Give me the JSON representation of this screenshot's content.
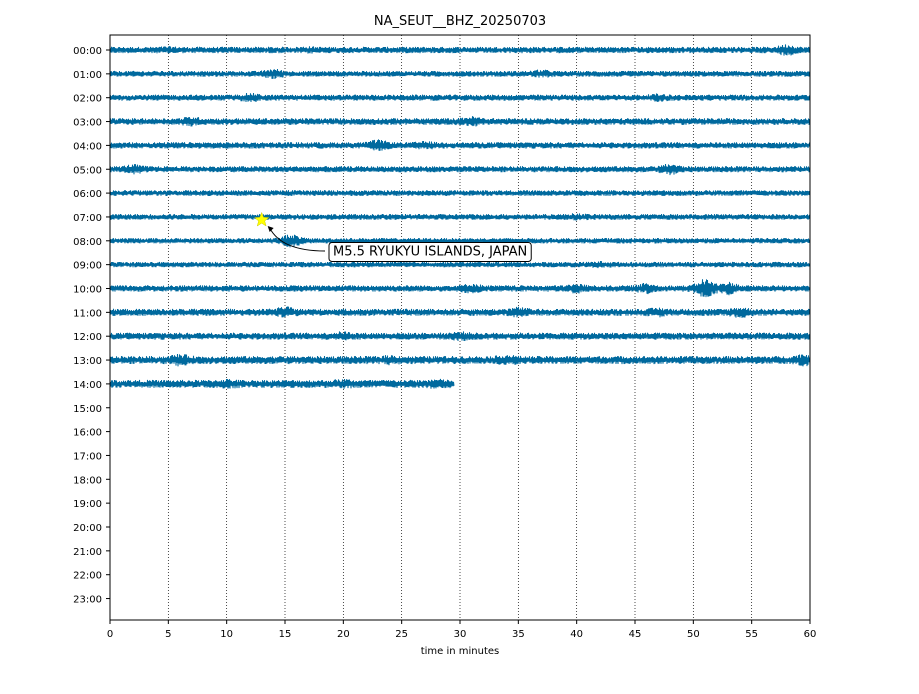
{
  "chart_data": {
    "type": "line",
    "title": "NA_SEUT__BHZ_20250703",
    "xlabel": "time in minutes",
    "ylabel": "",
    "xlim": [
      0,
      60
    ],
    "x_ticks": [
      0,
      5,
      10,
      15,
      20,
      25,
      30,
      35,
      40,
      45,
      50,
      55,
      60
    ],
    "y_tick_labels": [
      "00:00",
      "01:00",
      "02:00",
      "03:00",
      "04:00",
      "05:00",
      "06:00",
      "07:00",
      "08:00",
      "09:00",
      "10:00",
      "11:00",
      "12:00",
      "13:00",
      "14:00",
      "15:00",
      "16:00",
      "17:00",
      "18:00",
      "19:00",
      "20:00",
      "21:00",
      "22:00",
      "23:00"
    ],
    "grid": "vertical dotted lines at each 5 minutes",
    "trace_color": "#00699e",
    "rows": [
      {
        "hour": "00:00",
        "end_minute": 60,
        "amplitude": 1.0,
        "bursts": [
          {
            "t": 5,
            "a": 1.2
          },
          {
            "t": 17,
            "a": 1.2
          },
          {
            "t": 58,
            "a": 1.9
          }
        ]
      },
      {
        "hour": "01:00",
        "end_minute": 60,
        "amplitude": 0.9,
        "bursts": [
          {
            "t": 14,
            "a": 1.8
          },
          {
            "t": 37,
            "a": 1.5
          }
        ]
      },
      {
        "hour": "02:00",
        "end_minute": 60,
        "amplitude": 0.95,
        "bursts": [
          {
            "t": 12,
            "a": 1.6
          },
          {
            "t": 47,
            "a": 1.4
          }
        ]
      },
      {
        "hour": "03:00",
        "end_minute": 60,
        "amplitude": 1.05,
        "bursts": [
          {
            "t": 7,
            "a": 1.6
          },
          {
            "t": 31,
            "a": 1.7
          }
        ]
      },
      {
        "hour": "04:00",
        "end_minute": 60,
        "amplitude": 1.0,
        "bursts": [
          {
            "t": 23,
            "a": 1.9
          },
          {
            "t": 27,
            "a": 1.4
          }
        ]
      },
      {
        "hour": "05:00",
        "end_minute": 60,
        "amplitude": 0.95,
        "bursts": [
          {
            "t": 2,
            "a": 1.7
          },
          {
            "t": 48,
            "a": 1.9
          }
        ]
      },
      {
        "hour": "06:00",
        "end_minute": 60,
        "amplitude": 0.9,
        "bursts": []
      },
      {
        "hour": "07:00",
        "end_minute": 60,
        "amplitude": 0.9,
        "bursts": [
          {
            "t": 40,
            "a": 1.3
          }
        ]
      },
      {
        "hour": "08:00",
        "end_minute": 60,
        "amplitude": 0.85,
        "bursts": [
          {
            "t": 15.5,
            "a": 2.4
          }
        ]
      },
      {
        "hour": "09:00",
        "end_minute": 60,
        "amplitude": 0.85,
        "bursts": [
          {
            "t": 42,
            "a": 1.3
          }
        ]
      },
      {
        "hour": "10:00",
        "end_minute": 60,
        "amplitude": 1.0,
        "bursts": [
          {
            "t": 31,
            "a": 1.7
          },
          {
            "t": 40,
            "a": 1.6
          },
          {
            "t": 46,
            "a": 1.8
          },
          {
            "t": 51,
            "a": 3.2
          },
          {
            "t": 53,
            "a": 2.2
          }
        ]
      },
      {
        "hour": "11:00",
        "end_minute": 60,
        "amplitude": 1.1,
        "bursts": [
          {
            "t": 15,
            "a": 1.8
          },
          {
            "t": 35,
            "a": 1.7
          },
          {
            "t": 47,
            "a": 1.5
          },
          {
            "t": 54,
            "a": 1.7
          }
        ]
      },
      {
        "hour": "12:00",
        "end_minute": 60,
        "amplitude": 1.1,
        "bursts": [
          {
            "t": 20,
            "a": 1.5
          },
          {
            "t": 30,
            "a": 1.5
          }
        ]
      },
      {
        "hour": "13:00",
        "end_minute": 60,
        "amplitude": 1.25,
        "bursts": [
          {
            "t": 6,
            "a": 1.8
          },
          {
            "t": 24,
            "a": 1.4
          },
          {
            "t": 34,
            "a": 1.6
          },
          {
            "t": 59.5,
            "a": 1.9
          }
        ]
      },
      {
        "hour": "14:00",
        "end_minute": 29.5,
        "amplitude": 1.25,
        "bursts": [
          {
            "t": 10,
            "a": 1.4
          },
          {
            "t": 20,
            "a": 1.4
          },
          {
            "t": 28,
            "a": 1.4
          }
        ]
      }
    ],
    "annotations": [
      {
        "text": "M5.5 RYUKYU ISLANDS, JAPAN",
        "marker": "star",
        "marker_color": "#ffff00",
        "marker_x": 13,
        "marker_row": "07:00"
      }
    ]
  }
}
